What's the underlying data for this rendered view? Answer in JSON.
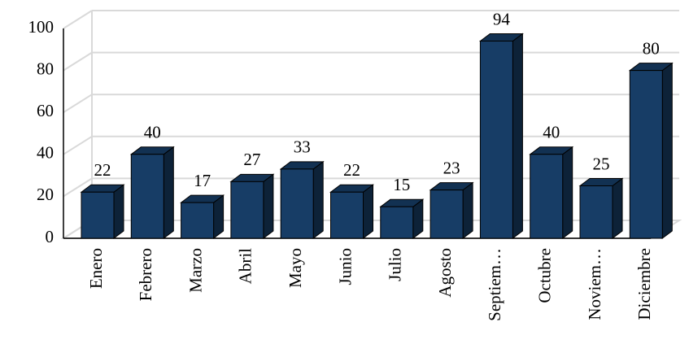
{
  "chart_data": {
    "type": "bar3d",
    "categories": [
      "Enero",
      "Febrero",
      "Marzo",
      "Abril",
      "Mayo",
      "Junio",
      "Julio",
      "Agosto",
      "Septiem…",
      "Octubre",
      "Noviem…",
      "Diciembre"
    ],
    "values": [
      22,
      40,
      17,
      27,
      33,
      22,
      15,
      23,
      94,
      40,
      25,
      80
    ],
    "color": "#173d66",
    "ylim": [
      0,
      100
    ],
    "yticks": [
      0,
      20,
      40,
      60,
      80,
      100
    ],
    "grid": true
  }
}
